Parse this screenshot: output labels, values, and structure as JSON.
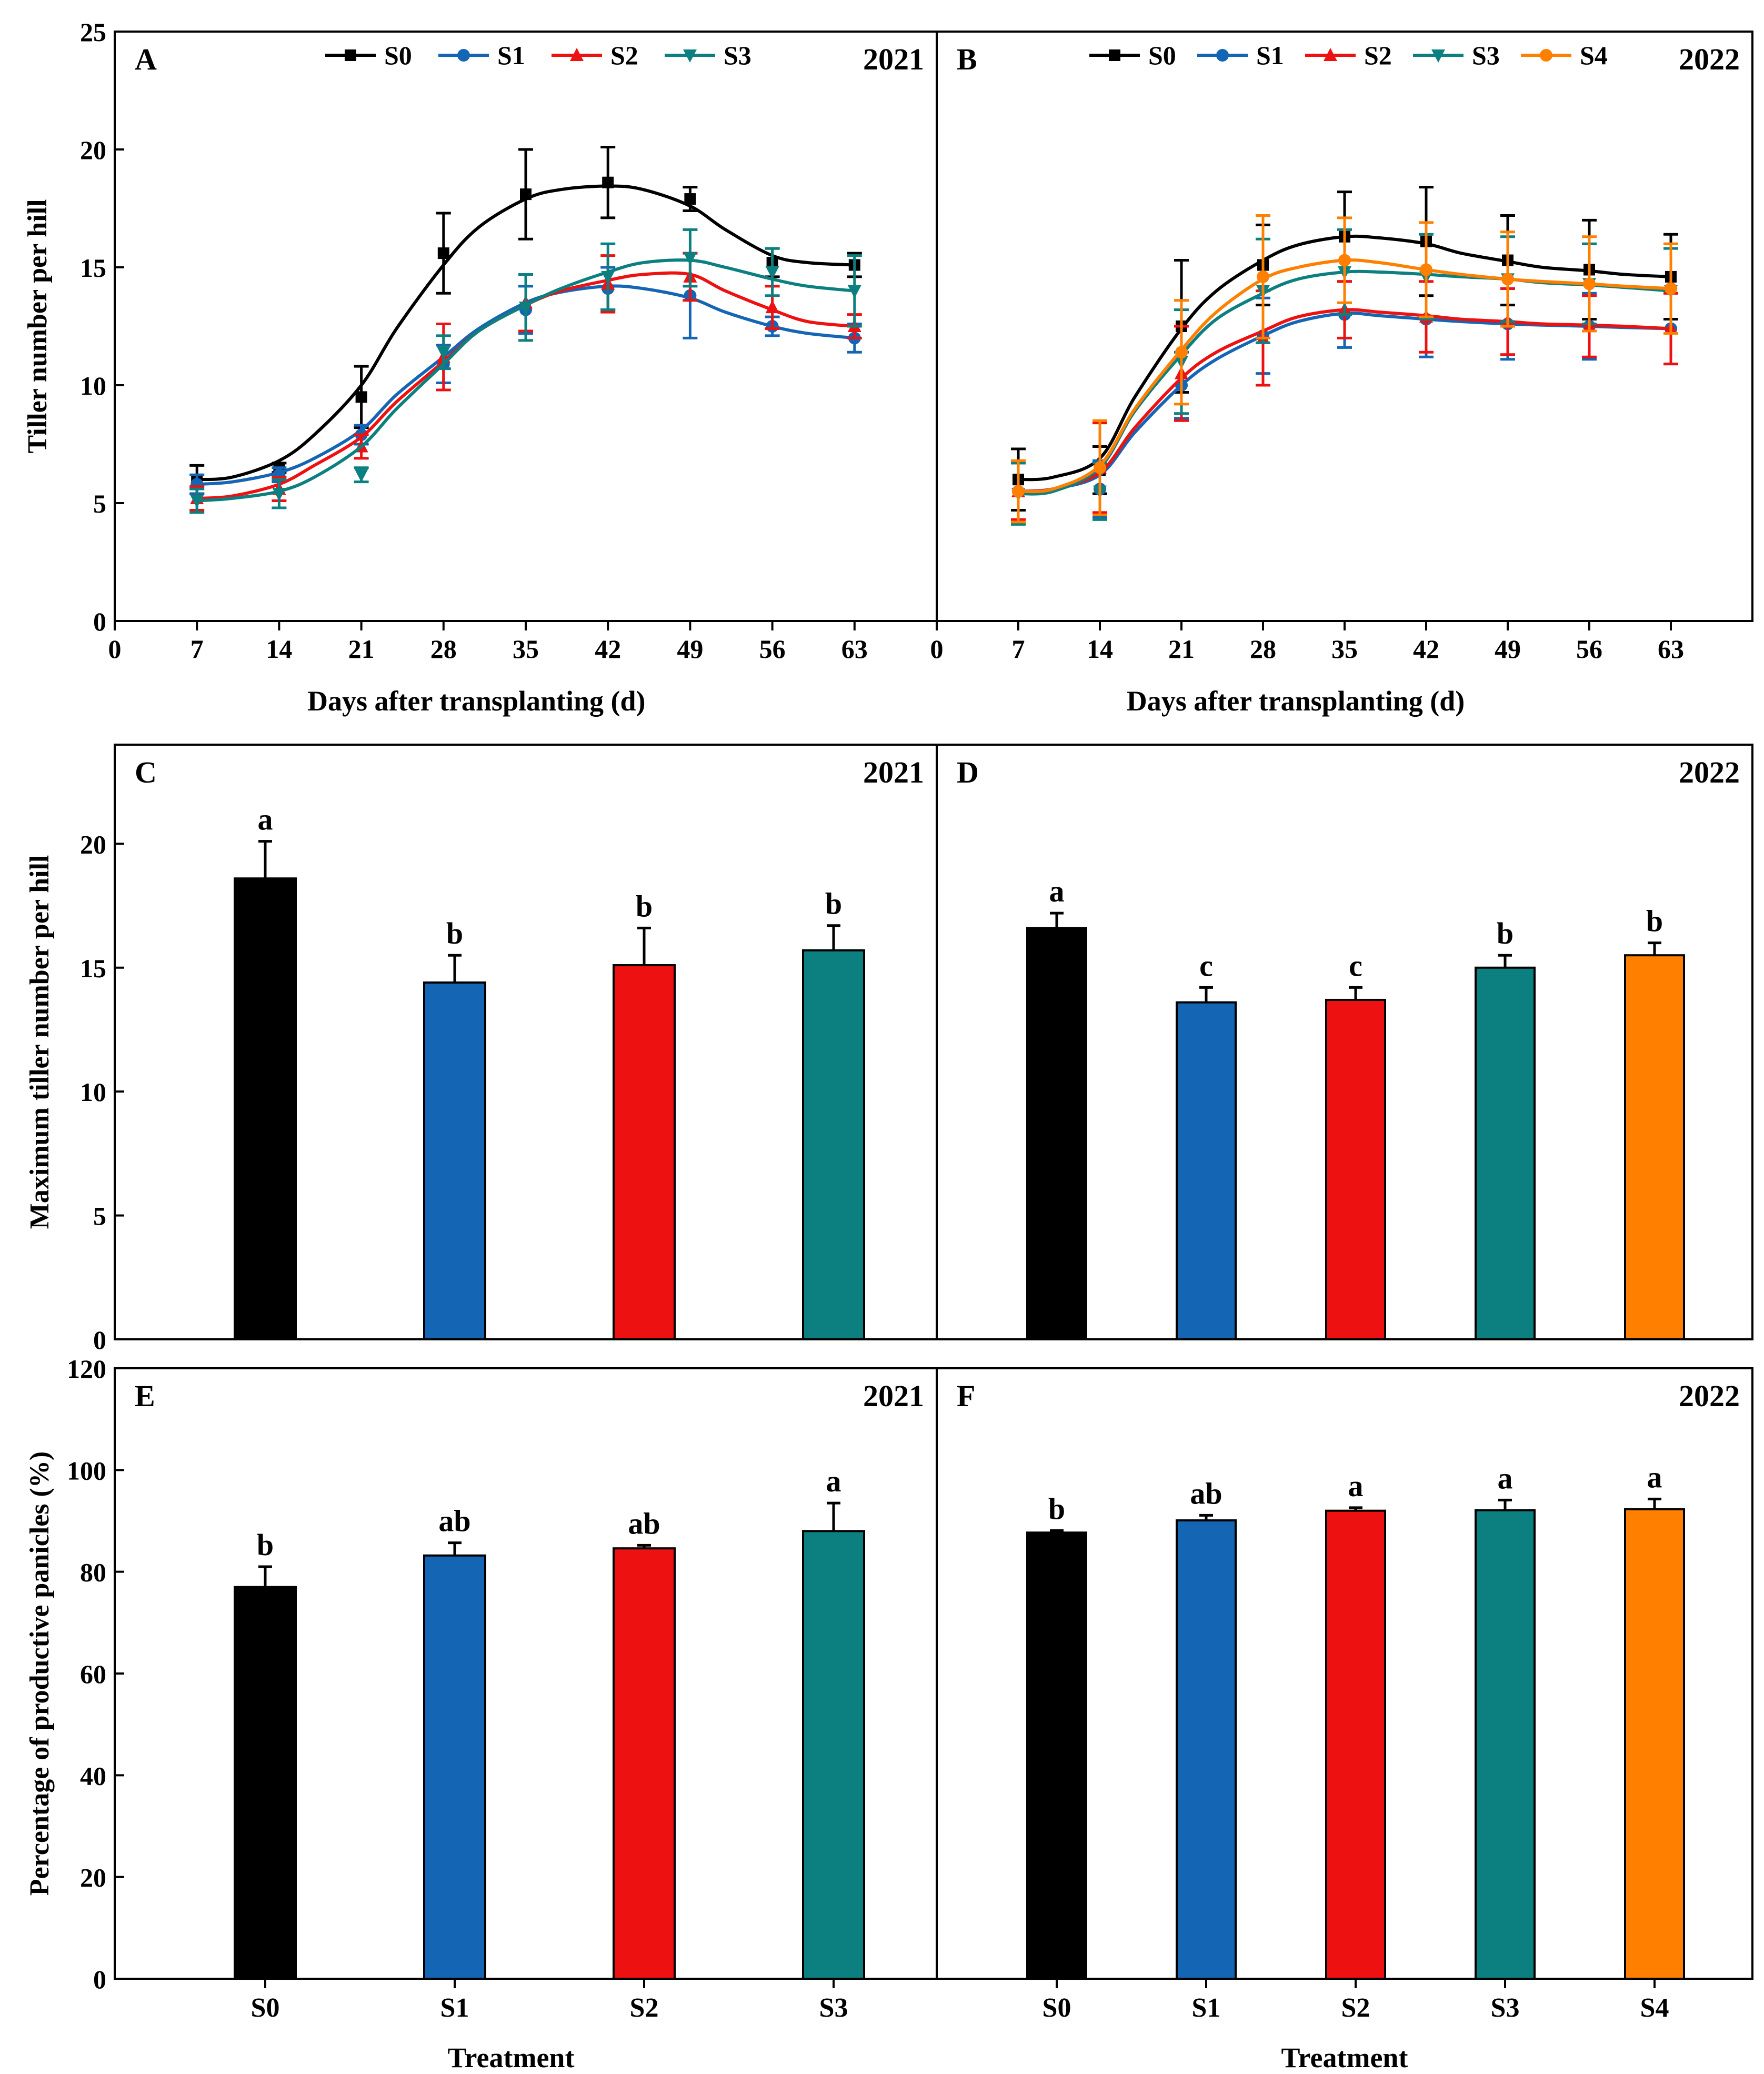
{
  "colors": {
    "S0": "#000000",
    "S1": "#1565b5",
    "S2": "#ee1111",
    "S3": "#0c8080",
    "S4": "#ff8000"
  },
  "chart_data": [
    {
      "panel": "A",
      "year": "2021",
      "type": "line",
      "xlabel": "Days after transplanting (d)",
      "ylabel": "Tiller number per hill",
      "xlim": [
        0,
        70
      ],
      "ylim": [
        0,
        25
      ],
      "xticks": [
        0,
        7,
        14,
        21,
        28,
        35,
        42,
        49,
        56,
        63
      ],
      "yticks": [
        0,
        5,
        10,
        15,
        20,
        25
      ],
      "x": [
        7,
        14,
        21,
        28,
        35,
        42,
        49,
        56,
        63
      ],
      "legend": [
        "S0",
        "S1",
        "S2",
        "S3"
      ],
      "series": [
        {
          "name": "S0",
          "marker": "square",
          "values": [
            6.0,
            6.5,
            9.5,
            15.6,
            18.1,
            18.6,
            17.9,
            15.2,
            15.1
          ],
          "err": [
            0.6,
            0.2,
            1.3,
            1.7,
            1.9,
            1.5,
            0.5,
            0.6,
            0.5
          ],
          "fit": [
            [
              7,
              6.0
            ],
            [
              10,
              6.1
            ],
            [
              14,
              6.8
            ],
            [
              17,
              7.9
            ],
            [
              21,
              10.0
            ],
            [
              24,
              12.4
            ],
            [
              28,
              15.1
            ],
            [
              31,
              16.7
            ],
            [
              35,
              17.9
            ],
            [
              38,
              18.3
            ],
            [
              42,
              18.45
            ],
            [
              45,
              18.3
            ],
            [
              49,
              17.6
            ],
            [
              52,
              16.6
            ],
            [
              56,
              15.5
            ],
            [
              59,
              15.2
            ],
            [
              63,
              15.1
            ]
          ]
        },
        {
          "name": "S1",
          "marker": "circle",
          "values": [
            5.8,
            6.2,
            7.9,
            10.9,
            13.2,
            14.1,
            13.8,
            12.5,
            12.0
          ],
          "err": [
            0.4,
            0.3,
            0.4,
            0.8,
            1.0,
            0.9,
            1.8,
            0.4,
            0.6
          ],
          "fit": [
            [
              7,
              5.8
            ],
            [
              10,
              5.9
            ],
            [
              14,
              6.3
            ],
            [
              17,
              6.9
            ],
            [
              21,
              8.1
            ],
            [
              24,
              9.6
            ],
            [
              28,
              11.2
            ],
            [
              31,
              12.4
            ],
            [
              35,
              13.5
            ],
            [
              38,
              13.95
            ],
            [
              42,
              14.2
            ],
            [
              45,
              14.1
            ],
            [
              49,
              13.7
            ],
            [
              52,
              13.1
            ],
            [
              56,
              12.5
            ],
            [
              59,
              12.2
            ],
            [
              63,
              12.0
            ]
          ]
        },
        {
          "name": "S2",
          "marker": "triangle-up",
          "values": [
            5.2,
            5.6,
            7.4,
            11.2,
            13.5,
            14.3,
            14.6,
            13.3,
            12.5
          ],
          "err": [
            0.5,
            0.5,
            0.5,
            1.4,
            1.2,
            1.2,
            1.0,
            0.9,
            0.5
          ],
          "fit": [
            [
              7,
              5.2
            ],
            [
              10,
              5.3
            ],
            [
              14,
              5.8
            ],
            [
              17,
              6.6
            ],
            [
              21,
              7.8
            ],
            [
              24,
              9.3
            ],
            [
              28,
              11.0
            ],
            [
              31,
              12.3
            ],
            [
              35,
              13.4
            ],
            [
              38,
              14.0
            ],
            [
              42,
              14.45
            ],
            [
              45,
              14.7
            ],
            [
              49,
              14.7
            ],
            [
              52,
              14.0
            ],
            [
              56,
              13.2
            ],
            [
              59,
              12.7
            ],
            [
              63,
              12.5
            ]
          ]
        },
        {
          "name": "S3",
          "marker": "triangle-down",
          "values": [
            5.1,
            5.4,
            6.2,
            11.4,
            13.3,
            14.6,
            15.4,
            14.8,
            14.0
          ],
          "err": [
            0.5,
            0.6,
            0.3,
            0.7,
            1.4,
            1.4,
            1.2,
            1.0,
            1.5
          ],
          "fit": [
            [
              7,
              5.1
            ],
            [
              10,
              5.2
            ],
            [
              14,
              5.5
            ],
            [
              17,
              6.1
            ],
            [
              21,
              7.4
            ],
            [
              24,
              9.0
            ],
            [
              28,
              10.9
            ],
            [
              31,
              12.3
            ],
            [
              35,
              13.4
            ],
            [
              38,
              14.1
            ],
            [
              42,
              14.8
            ],
            [
              45,
              15.2
            ],
            [
              49,
              15.3
            ],
            [
              52,
              15.0
            ],
            [
              56,
              14.5
            ],
            [
              59,
              14.2
            ],
            [
              63,
              14.0
            ]
          ]
        }
      ]
    },
    {
      "panel": "B",
      "year": "2022",
      "type": "line",
      "xlabel": "Days after transplanting (d)",
      "ylabel": "",
      "xlim": [
        0,
        70
      ],
      "ylim": [
        0,
        25
      ],
      "xticks": [
        0,
        7,
        14,
        21,
        28,
        35,
        42,
        49,
        56,
        63
      ],
      "x": [
        7,
        14,
        21,
        28,
        35,
        42,
        49,
        56,
        63
      ],
      "legend": [
        "S0",
        "S1",
        "S2",
        "S3",
        "S4"
      ],
      "series": [
        {
          "name": "S0",
          "marker": "square",
          "values": [
            6.0,
            6.4,
            12.5,
            15.1,
            16.3,
            16.1,
            15.3,
            14.9,
            14.6
          ],
          "err": [
            1.3,
            1.0,
            2.8,
            1.7,
            1.9,
            2.3,
            1.9,
            2.1,
            1.8
          ],
          "fit": [
            [
              7,
              6.0
            ],
            [
              10,
              6.1
            ],
            [
              14,
              6.9
            ],
            [
              17,
              9.5
            ],
            [
              21,
              12.4
            ],
            [
              24,
              14.0
            ],
            [
              28,
              15.3
            ],
            [
              31,
              15.95
            ],
            [
              35,
              16.3
            ],
            [
              38,
              16.25
            ],
            [
              42,
              16.0
            ],
            [
              45,
              15.6
            ],
            [
              49,
              15.25
            ],
            [
              52,
              15.0
            ],
            [
              56,
              14.85
            ],
            [
              59,
              14.7
            ],
            [
              63,
              14.6
            ]
          ]
        },
        {
          "name": "S1",
          "marker": "circle",
          "values": [
            5.5,
            5.6,
            10.0,
            12.1,
            13.0,
            12.8,
            12.6,
            12.5,
            12.4
          ],
          "err": [
            1.2,
            1.2,
            1.4,
            1.6,
            1.4,
            1.6,
            1.5,
            1.4,
            1.5
          ],
          "fit": [
            [
              7,
              5.5
            ],
            [
              10,
              5.6
            ],
            [
              14,
              6.2
            ],
            [
              17,
              8.0
            ],
            [
              21,
              10.0
            ],
            [
              24,
              11.1
            ],
            [
              28,
              12.1
            ],
            [
              31,
              12.7
            ],
            [
              35,
              13.05
            ],
            [
              38,
              12.95
            ],
            [
              42,
              12.8
            ],
            [
              45,
              12.7
            ],
            [
              49,
              12.6
            ],
            [
              52,
              12.55
            ],
            [
              56,
              12.5
            ],
            [
              59,
              12.45
            ],
            [
              63,
              12.4
            ]
          ]
        },
        {
          "name": "S2",
          "marker": "triangle-up",
          "values": [
            5.5,
            6.5,
            10.5,
            12.0,
            13.2,
            12.9,
            12.7,
            12.5,
            12.4
          ],
          "err": [
            1.2,
            1.9,
            2.0,
            2.0,
            1.2,
            1.5,
            1.4,
            1.3,
            1.5
          ],
          "fit": [
            [
              7,
              5.5
            ],
            [
              10,
              5.6
            ],
            [
              14,
              6.3
            ],
            [
              17,
              8.2
            ],
            [
              21,
              10.3
            ],
            [
              24,
              11.4
            ],
            [
              28,
              12.3
            ],
            [
              31,
              12.9
            ],
            [
              35,
              13.2
            ],
            [
              38,
              13.1
            ],
            [
              42,
              12.95
            ],
            [
              45,
              12.8
            ],
            [
              49,
              12.7
            ],
            [
              52,
              12.6
            ],
            [
              56,
              12.55
            ],
            [
              59,
              12.5
            ],
            [
              63,
              12.4
            ]
          ]
        },
        {
          "name": "S3",
          "marker": "triangle-down",
          "values": [
            5.4,
            5.5,
            11.0,
            14.0,
            14.8,
            14.6,
            14.5,
            14.3,
            14.0
          ],
          "err": [
            1.3,
            1.2,
            2.2,
            2.2,
            1.8,
            1.8,
            1.8,
            1.7,
            1.8
          ],
          "fit": [
            [
              7,
              5.4
            ],
            [
              10,
              5.5
            ],
            [
              14,
              6.5
            ],
            [
              17,
              8.9
            ],
            [
              21,
              11.3
            ],
            [
              24,
              12.8
            ],
            [
              28,
              13.9
            ],
            [
              31,
              14.5
            ],
            [
              35,
              14.8
            ],
            [
              38,
              14.8
            ],
            [
              42,
              14.7
            ],
            [
              45,
              14.6
            ],
            [
              49,
              14.5
            ],
            [
              52,
              14.35
            ],
            [
              56,
              14.25
            ],
            [
              59,
              14.15
            ],
            [
              63,
              14.0
            ]
          ]
        },
        {
          "name": "S4",
          "marker": "circle",
          "values": [
            5.5,
            6.5,
            11.4,
            14.6,
            15.3,
            14.9,
            14.5,
            14.3,
            14.1
          ],
          "err": [
            1.3,
            2.0,
            2.2,
            2.6,
            1.8,
            2.0,
            2.0,
            2.0,
            1.9
          ],
          "fit": [
            [
              7,
              5.5
            ],
            [
              10,
              5.6
            ],
            [
              14,
              6.6
            ],
            [
              17,
              9.0
            ],
            [
              21,
              11.5
            ],
            [
              24,
              13.1
            ],
            [
              28,
              14.5
            ],
            [
              31,
              15.0
            ],
            [
              35,
              15.3
            ],
            [
              38,
              15.2
            ],
            [
              42,
              14.9
            ],
            [
              45,
              14.7
            ],
            [
              49,
              14.5
            ],
            [
              52,
              14.4
            ],
            [
              56,
              14.3
            ],
            [
              59,
              14.2
            ],
            [
              63,
              14.1
            ]
          ]
        }
      ]
    },
    {
      "panel": "C",
      "year": "2021",
      "type": "bar",
      "ylabel": "Maximum tiller number per hill",
      "ylim": [
        0,
        24
      ],
      "yticks": [
        0,
        5,
        10,
        15,
        20
      ],
      "categories": [
        "S0",
        "S1",
        "S2",
        "S3"
      ],
      "values": [
        18.6,
        14.4,
        15.1,
        15.7
      ],
      "err": [
        1.5,
        1.1,
        1.5,
        1.0
      ],
      "letters": [
        "a",
        "b",
        "b",
        "b"
      ]
    },
    {
      "panel": "D",
      "year": "2022",
      "type": "bar",
      "ylabel": "",
      "ylim": [
        0,
        24
      ],
      "categories": [
        "S0",
        "S1",
        "S2",
        "S3",
        "S4"
      ],
      "values": [
        16.6,
        13.6,
        13.7,
        15.0,
        15.5
      ],
      "err": [
        0.6,
        0.6,
        0.5,
        0.5,
        0.5
      ],
      "letters": [
        "a",
        "c",
        "c",
        "b",
        "b"
      ]
    },
    {
      "panel": "E",
      "year": "2021",
      "type": "bar",
      "xlabel": "Treatment",
      "ylabel": "Percentage of productive panicles  (%)",
      "ylim": [
        0,
        120
      ],
      "yticks": [
        0,
        20,
        40,
        60,
        80,
        100,
        120
      ],
      "categories": [
        "S0",
        "S1",
        "S2",
        "S3"
      ],
      "values": [
        77.0,
        83.2,
        84.6,
        88.0
      ],
      "err": [
        4.0,
        2.5,
        0.6,
        5.5
      ],
      "letters": [
        "b",
        "ab",
        "ab",
        "a"
      ]
    },
    {
      "panel": "F",
      "year": "2022",
      "type": "bar",
      "xlabel": "Treatment",
      "ylabel": "",
      "ylim": [
        0,
        120
      ],
      "categories": [
        "S0",
        "S1",
        "S2",
        "S3",
        "S4"
      ],
      "values": [
        87.7,
        90.1,
        92.0,
        92.1,
        92.3
      ],
      "err": [
        0.4,
        1.0,
        0.6,
        2.0,
        2.0
      ],
      "letters": [
        "b",
        "ab",
        "a",
        "a",
        "a"
      ]
    }
  ]
}
